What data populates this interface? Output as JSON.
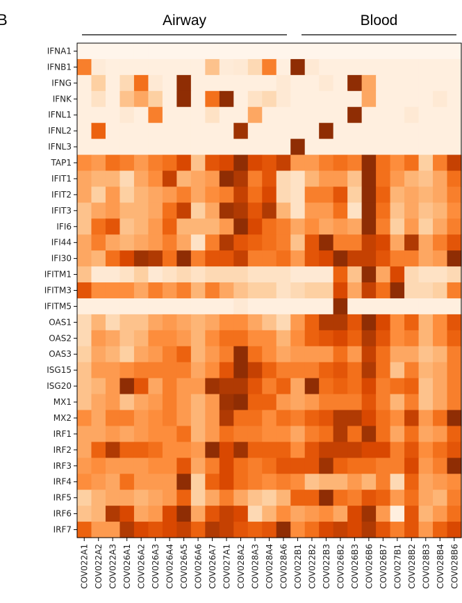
{
  "chart_data": {
    "type": "heatmap",
    "panel_letter": "B",
    "groups": [
      {
        "label": "Airway",
        "columns": [
          "COV022A1",
          "COV022A2",
          "COV022A3",
          "COV026A1",
          "COV026A2",
          "COV026A3",
          "COV026A4",
          "COV026A5",
          "COV026A6",
          "COV026A7",
          "COV027A1",
          "COV028A2",
          "COV028A3",
          "COV028A4",
          "COV028A6"
        ]
      },
      {
        "label": "Blood",
        "columns": [
          "COV022B1",
          "COV022B2",
          "COV022B3",
          "COV026B2",
          "COV026B3",
          "COV026B6",
          "COV026B7",
          "COV027B1",
          "COV028B2",
          "COV028B3",
          "COV028B4",
          "COV028B6"
        ]
      }
    ],
    "rows": [
      "IFNA1",
      "IFNB1",
      "IFNG",
      "IFNK",
      "IFNL1",
      "IFNL2",
      "IFNL3",
      "TAP1",
      "IFIT1",
      "IFIT2",
      "IFIT3",
      "IFI6",
      "IFI44",
      "IFI30",
      "IFITM1",
      "IFITM3",
      "IFITM5",
      "OAS1",
      "OAS2",
      "OAS3",
      "ISG15",
      "ISG20",
      "MX1",
      "MX2",
      "IRF1",
      "IRF2",
      "IRF3",
      "IRF4",
      "IRF5",
      "IRF6",
      "IRF7"
    ],
    "columns": [
      "COV022A1",
      "COV022A2",
      "COV022A3",
      "COV026A1",
      "COV026A2",
      "COV026A3",
      "COV026A4",
      "COV026A5",
      "COV026A6",
      "COV026A7",
      "COV027A1",
      "COV028A2",
      "COV028A3",
      "COV028A4",
      "COV028A6",
      "COV022B1",
      "COV022B2",
      "COV022B3",
      "COV026B2",
      "COV026B3",
      "COV026B6",
      "COV026B7",
      "COV027B1",
      "COV028B2",
      "COV028B3",
      "COV028B4",
      "COV028B6"
    ],
    "colormap": "Oranges",
    "color_range": [
      0,
      1
    ],
    "values": [
      [
        0.0,
        0.0,
        0.0,
        0.0,
        0.0,
        0.0,
        0.0,
        0.0,
        0.0,
        0.0,
        0.0,
        0.0,
        0.0,
        0.0,
        0.0,
        0.0,
        0.0,
        0.0,
        0.0,
        0.0,
        0.0,
        0.0,
        0.0,
        0.0,
        0.0,
        0.0,
        0.0
      ],
      [
        0.55,
        0.08,
        0.05,
        0.05,
        0.05,
        0.05,
        0.05,
        0.05,
        0.05,
        0.3,
        0.08,
        0.1,
        0.2,
        0.55,
        0.05,
        0.95,
        0.1,
        0.05,
        0.05,
        0.05,
        0.05,
        0.05,
        0.05,
        0.05,
        0.05,
        0.05,
        0.05
      ],
      [
        0.05,
        0.25,
        0.05,
        0.2,
        0.6,
        0.1,
        0.05,
        0.95,
        0.05,
        0.05,
        0.05,
        0.05,
        0.05,
        0.05,
        0.1,
        0.05,
        0.05,
        0.1,
        0.05,
        0.95,
        0.4,
        0.05,
        0.05,
        0.05,
        0.05,
        0.05,
        0.05
      ],
      [
        0.05,
        0.15,
        0.05,
        0.3,
        0.4,
        0.25,
        0.05,
        0.95,
        0.05,
        0.6,
        0.95,
        0.05,
        0.15,
        0.2,
        0.1,
        0.05,
        0.05,
        0.05,
        0.05,
        0.05,
        0.4,
        0.05,
        0.05,
        0.05,
        0.05,
        0.1,
        0.05
      ],
      [
        0.05,
        0.05,
        0.05,
        0.1,
        0.05,
        0.55,
        0.05,
        0.05,
        0.05,
        0.15,
        0.05,
        0.05,
        0.4,
        0.05,
        0.05,
        0.05,
        0.05,
        0.05,
        0.05,
        0.95,
        0.05,
        0.05,
        0.05,
        0.1,
        0.05,
        0.05,
        0.05
      ],
      [
        0.05,
        0.65,
        0.05,
        0.05,
        0.05,
        0.05,
        0.05,
        0.05,
        0.05,
        0.05,
        0.05,
        0.9,
        0.05,
        0.05,
        0.05,
        0.05,
        0.05,
        0.95,
        0.05,
        0.05,
        0.05,
        0.05,
        0.05,
        0.05,
        0.05,
        0.05,
        0.05
      ],
      [
        0.05,
        0.05,
        0.05,
        0.05,
        0.05,
        0.05,
        0.05,
        0.05,
        0.05,
        0.05,
        0.05,
        0.05,
        0.05,
        0.05,
        0.05,
        0.95,
        0.05,
        0.05,
        0.05,
        0.05,
        0.05,
        0.05,
        0.05,
        0.05,
        0.05,
        0.05,
        0.05
      ],
      [
        0.5,
        0.45,
        0.6,
        0.55,
        0.45,
        0.55,
        0.6,
        0.75,
        0.3,
        0.7,
        0.75,
        0.95,
        0.75,
        0.7,
        0.8,
        0.45,
        0.45,
        0.55,
        0.6,
        0.55,
        0.95,
        0.6,
        0.5,
        0.6,
        0.25,
        0.55,
        0.8
      ],
      [
        0.4,
        0.35,
        0.35,
        0.2,
        0.4,
        0.5,
        0.8,
        0.35,
        0.4,
        0.45,
        0.95,
        0.85,
        0.55,
        0.7,
        0.2,
        0.15,
        0.35,
        0.45,
        0.45,
        0.3,
        0.95,
        0.6,
        0.45,
        0.35,
        0.3,
        0.4,
        0.6
      ],
      [
        0.4,
        0.25,
        0.45,
        0.25,
        0.35,
        0.4,
        0.45,
        0.55,
        0.4,
        0.5,
        0.55,
        0.8,
        0.6,
        0.75,
        0.2,
        0.15,
        0.55,
        0.55,
        0.7,
        0.25,
        0.95,
        0.65,
        0.35,
        0.4,
        0.35,
        0.4,
        0.55
      ],
      [
        0.3,
        0.4,
        0.45,
        0.35,
        0.35,
        0.4,
        0.6,
        0.8,
        0.25,
        0.4,
        0.9,
        0.85,
        0.7,
        0.85,
        0.35,
        0.15,
        0.45,
        0.45,
        0.6,
        0.15,
        0.95,
        0.6,
        0.3,
        0.4,
        0.3,
        0.35,
        0.5
      ],
      [
        0.3,
        0.6,
        0.7,
        0.3,
        0.35,
        0.45,
        0.65,
        0.35,
        0.35,
        0.35,
        0.45,
        0.95,
        0.75,
        0.6,
        0.55,
        0.4,
        0.5,
        0.4,
        0.45,
        0.4,
        0.95,
        0.55,
        0.25,
        0.45,
        0.25,
        0.4,
        0.55
      ],
      [
        0.4,
        0.55,
        0.4,
        0.35,
        0.4,
        0.45,
        0.55,
        0.4,
        0.15,
        0.55,
        0.85,
        0.7,
        0.65,
        0.6,
        0.55,
        0.3,
        0.7,
        0.95,
        0.55,
        0.55,
        0.8,
        0.75,
        0.4,
        0.85,
        0.4,
        0.55,
        0.7
      ],
      [
        0.4,
        0.35,
        0.6,
        0.75,
        0.9,
        0.85,
        0.6,
        0.95,
        0.55,
        0.7,
        0.7,
        0.8,
        0.55,
        0.55,
        0.6,
        0.45,
        0.7,
        0.75,
        0.95,
        0.8,
        0.8,
        0.7,
        0.55,
        0.55,
        0.4,
        0.45,
        0.95
      ],
      [
        0.3,
        0.1,
        0.1,
        0.15,
        0.25,
        0.1,
        0.15,
        0.2,
        0.15,
        0.2,
        0.2,
        0.2,
        0.15,
        0.15,
        0.15,
        0.1,
        0.1,
        0.1,
        0.65,
        0.3,
        0.95,
        0.4,
        0.75,
        0.2,
        0.15,
        0.15,
        0.2
      ],
      [
        0.7,
        0.5,
        0.5,
        0.5,
        0.4,
        0.55,
        0.45,
        0.55,
        0.35,
        0.55,
        0.4,
        0.3,
        0.25,
        0.25,
        0.15,
        0.2,
        0.25,
        0.25,
        0.75,
        0.4,
        0.8,
        0.6,
        0.95,
        0.2,
        0.2,
        0.25,
        0.55
      ],
      [
        0.05,
        0.05,
        0.05,
        0.05,
        0.05,
        0.05,
        0.05,
        0.05,
        0.05,
        0.05,
        0.05,
        0.1,
        0.05,
        0.05,
        0.05,
        0.05,
        0.05,
        0.05,
        0.95,
        0.05,
        0.05,
        0.05,
        0.05,
        0.05,
        0.05,
        0.05,
        0.05
      ],
      [
        0.2,
        0.35,
        0.2,
        0.3,
        0.3,
        0.4,
        0.45,
        0.4,
        0.35,
        0.4,
        0.5,
        0.5,
        0.4,
        0.3,
        0.2,
        0.45,
        0.65,
        0.85,
        0.85,
        0.7,
        0.95,
        0.75,
        0.5,
        0.65,
        0.35,
        0.5,
        0.7
      ],
      [
        0.2,
        0.45,
        0.4,
        0.3,
        0.35,
        0.5,
        0.5,
        0.45,
        0.35,
        0.5,
        0.6,
        0.6,
        0.5,
        0.5,
        0.35,
        0.5,
        0.65,
        0.7,
        0.75,
        0.65,
        0.85,
        0.7,
        0.5,
        0.55,
        0.35,
        0.5,
        0.65
      ],
      [
        0.25,
        0.4,
        0.35,
        0.25,
        0.4,
        0.45,
        0.55,
        0.65,
        0.35,
        0.45,
        0.55,
        0.95,
        0.6,
        0.5,
        0.4,
        0.45,
        0.45,
        0.45,
        0.6,
        0.45,
        0.8,
        0.6,
        0.4,
        0.4,
        0.3,
        0.35,
        0.55
      ],
      [
        0.3,
        0.45,
        0.45,
        0.5,
        0.55,
        0.55,
        0.55,
        0.55,
        0.4,
        0.5,
        0.7,
        0.95,
        0.8,
        0.65,
        0.55,
        0.55,
        0.55,
        0.65,
        0.7,
        0.6,
        0.85,
        0.6,
        0.3,
        0.55,
        0.35,
        0.4,
        0.55
      ],
      [
        0.3,
        0.35,
        0.45,
        0.95,
        0.7,
        0.4,
        0.55,
        0.45,
        0.45,
        0.9,
        0.85,
        0.85,
        0.7,
        0.55,
        0.65,
        0.4,
        0.95,
        0.6,
        0.65,
        0.6,
        0.75,
        0.55,
        0.6,
        0.65,
        0.3,
        0.4,
        0.55
      ],
      [
        0.3,
        0.4,
        0.45,
        0.3,
        0.4,
        0.45,
        0.55,
        0.45,
        0.35,
        0.45,
        0.9,
        0.95,
        0.65,
        0.65,
        0.45,
        0.4,
        0.45,
        0.55,
        0.55,
        0.55,
        0.7,
        0.55,
        0.35,
        0.55,
        0.3,
        0.4,
        0.55
      ],
      [
        0.5,
        0.4,
        0.55,
        0.55,
        0.45,
        0.5,
        0.55,
        0.45,
        0.35,
        0.45,
        0.85,
        0.6,
        0.6,
        0.5,
        0.6,
        0.55,
        0.65,
        0.7,
        0.85,
        0.85,
        0.75,
        0.6,
        0.5,
        0.8,
        0.45,
        0.6,
        0.95
      ],
      [
        0.4,
        0.4,
        0.45,
        0.4,
        0.45,
        0.5,
        0.5,
        0.6,
        0.35,
        0.45,
        0.6,
        0.55,
        0.55,
        0.5,
        0.5,
        0.4,
        0.55,
        0.6,
        0.85,
        0.6,
        0.9,
        0.6,
        0.4,
        0.6,
        0.4,
        0.45,
        0.65
      ],
      [
        0.4,
        0.65,
        0.85,
        0.65,
        0.65,
        0.6,
        0.5,
        0.5,
        0.45,
        0.95,
        0.75,
        0.9,
        0.65,
        0.65,
        0.65,
        0.5,
        0.7,
        0.8,
        0.8,
        0.8,
        0.75,
        0.75,
        0.55,
        0.7,
        0.5,
        0.6,
        0.7
      ],
      [
        0.45,
        0.5,
        0.45,
        0.45,
        0.45,
        0.5,
        0.5,
        0.7,
        0.4,
        0.55,
        0.75,
        0.6,
        0.55,
        0.6,
        0.7,
        0.7,
        0.7,
        0.9,
        0.65,
        0.6,
        0.6,
        0.55,
        0.55,
        0.75,
        0.45,
        0.55,
        0.95
      ],
      [
        0.5,
        0.45,
        0.4,
        0.6,
        0.45,
        0.45,
        0.45,
        0.95,
        0.25,
        0.65,
        0.75,
        0.6,
        0.55,
        0.5,
        0.55,
        0.5,
        0.3,
        0.35,
        0.35,
        0.45,
        0.35,
        0.55,
        0.2,
        0.65,
        0.4,
        0.45,
        0.5
      ],
      [
        0.25,
        0.35,
        0.4,
        0.4,
        0.35,
        0.4,
        0.45,
        0.65,
        0.25,
        0.4,
        0.55,
        0.4,
        0.3,
        0.25,
        0.35,
        0.65,
        0.65,
        0.95,
        0.6,
        0.55,
        0.7,
        0.65,
        0.45,
        0.6,
        0.4,
        0.35,
        0.55
      ],
      [
        0.3,
        0.35,
        0.85,
        0.75,
        0.4,
        0.45,
        0.75,
        0.95,
        0.4,
        0.7,
        0.8,
        0.75,
        0.2,
        0.35,
        0.5,
        0.4,
        0.45,
        0.5,
        0.4,
        0.75,
        0.9,
        0.45,
        0.05,
        0.7,
        0.35,
        0.45,
        0.6
      ],
      [
        0.65,
        0.45,
        0.45,
        0.85,
        0.75,
        0.7,
        0.75,
        0.8,
        0.65,
        0.85,
        0.8,
        0.7,
        0.65,
        0.7,
        0.95,
        0.5,
        0.6,
        0.75,
        0.8,
        0.75,
        0.85,
        0.7,
        0.55,
        0.7,
        0.45,
        0.65,
        0.75
      ]
    ]
  }
}
